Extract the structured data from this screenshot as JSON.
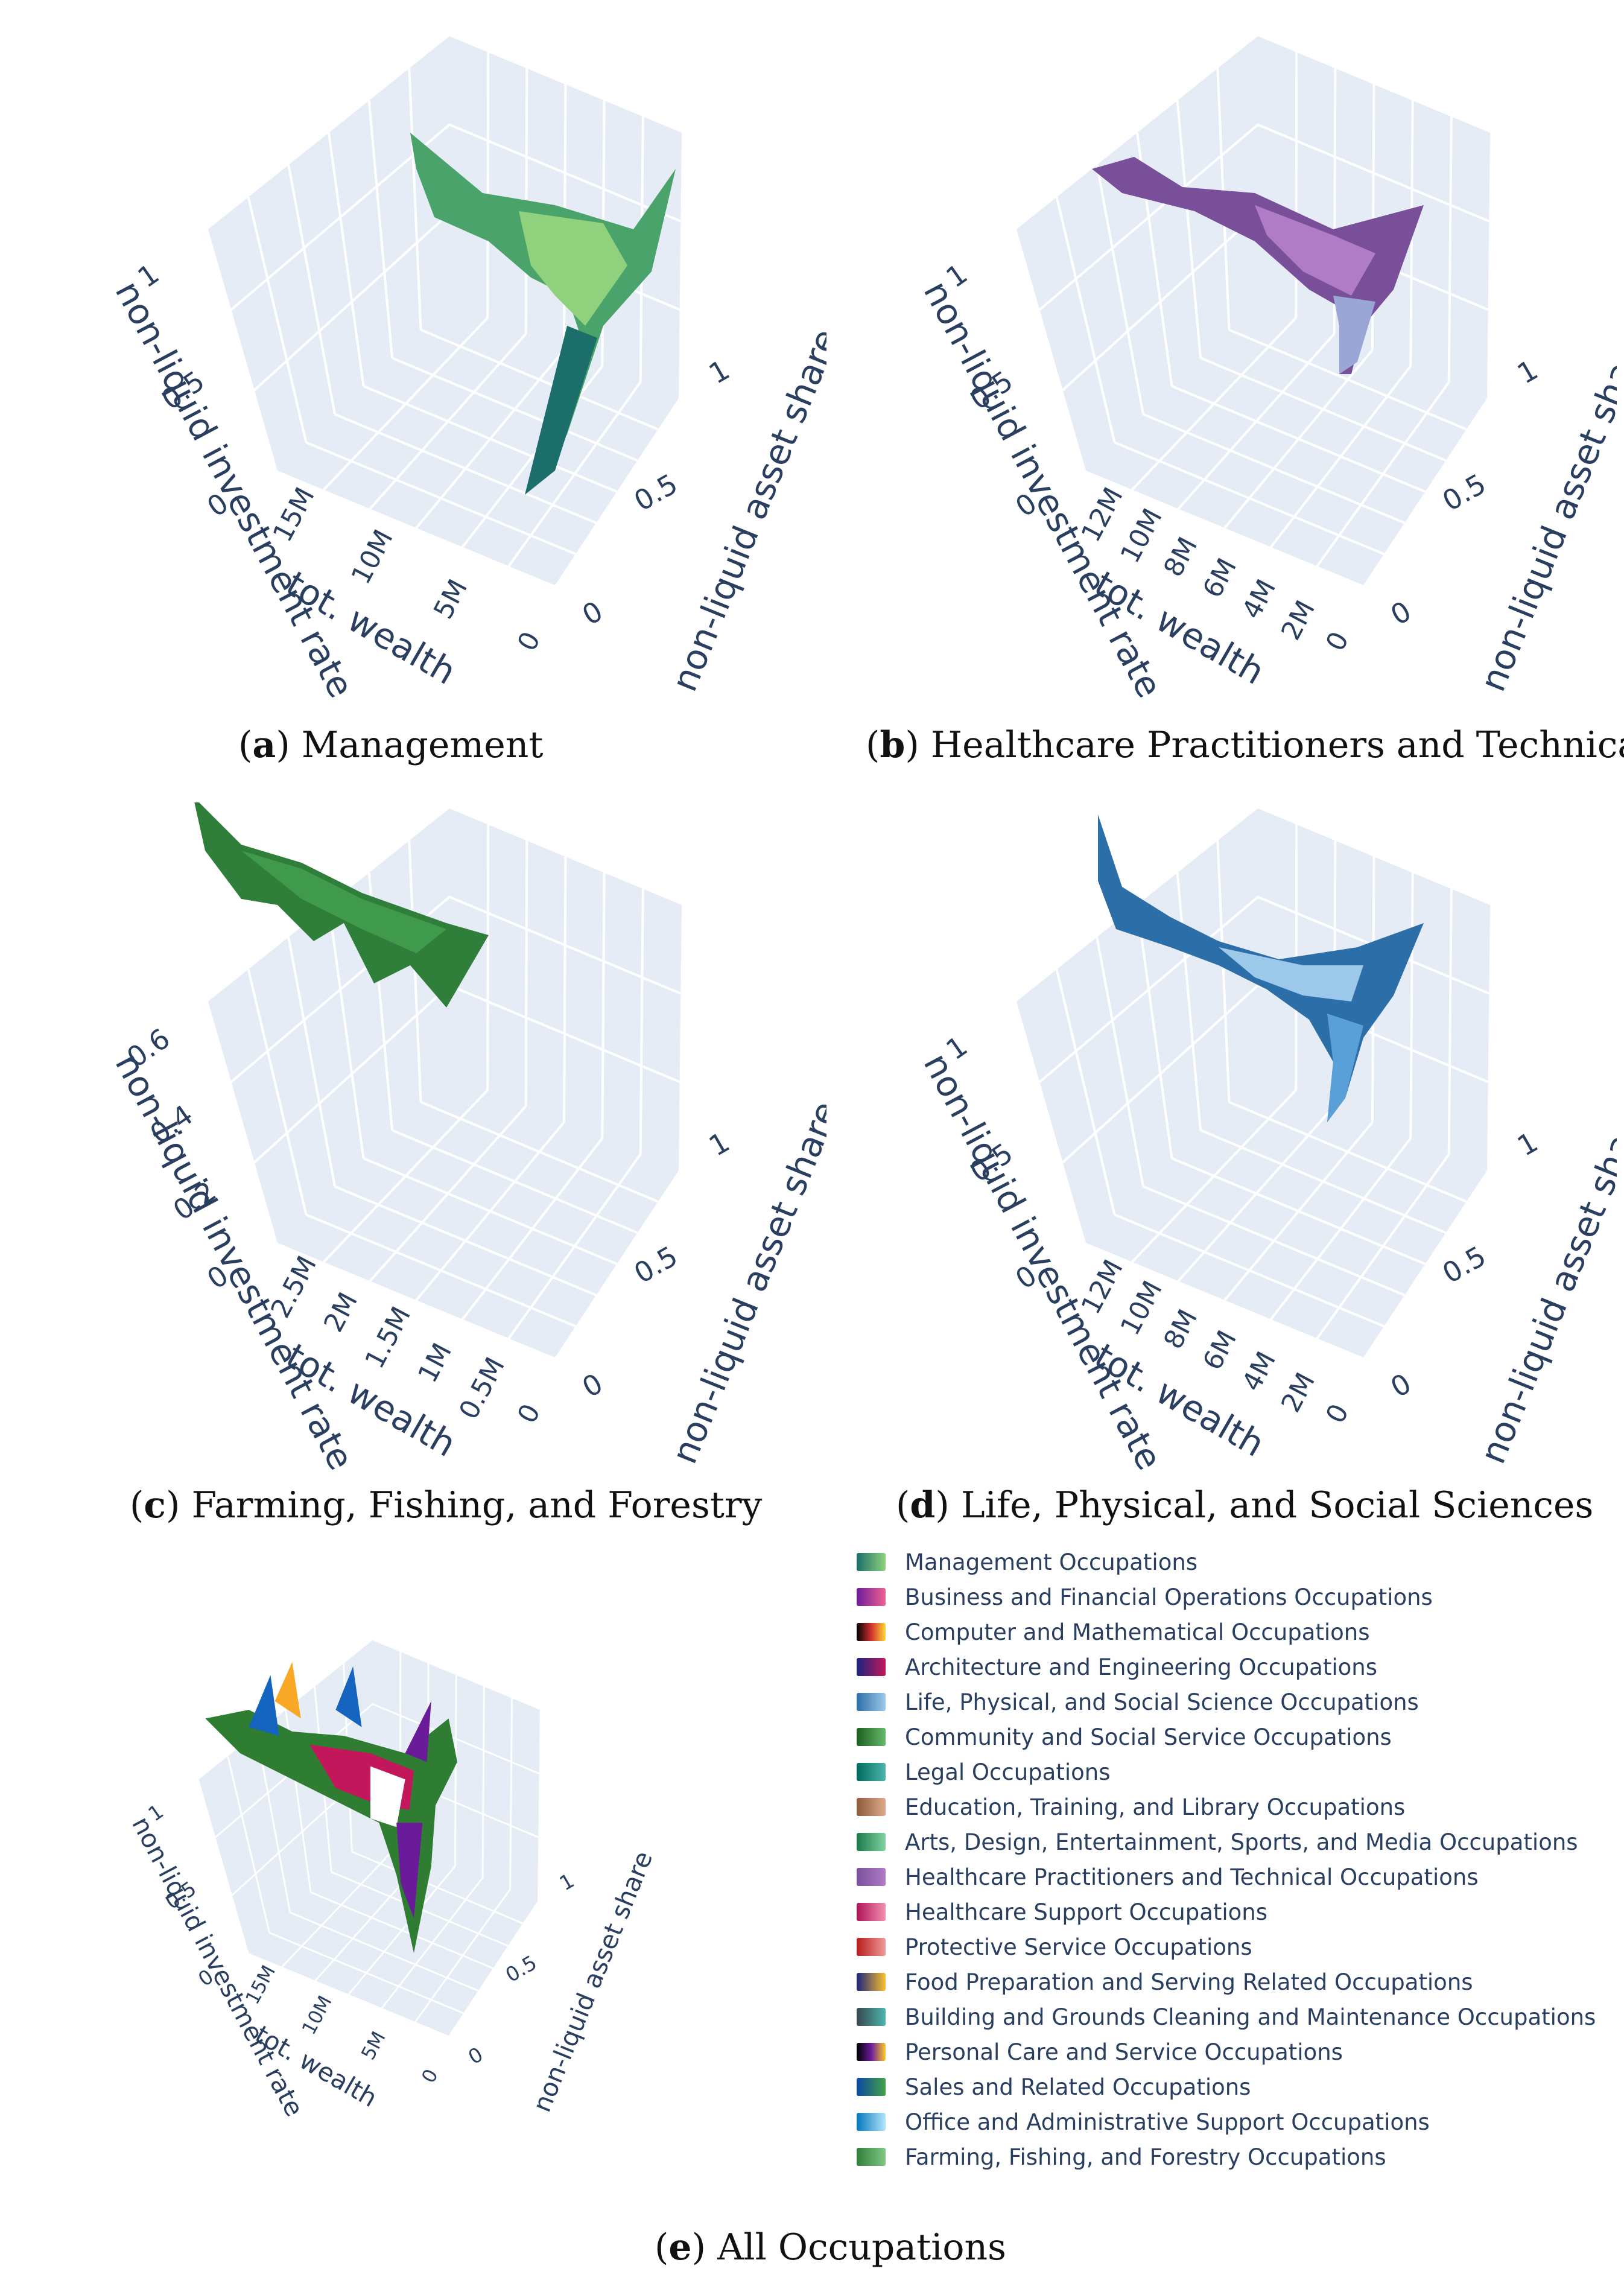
{
  "panels": [
    {
      "id": "a",
      "caption_letter": "a",
      "caption_text": "Management",
      "z_ticks": [
        "1",
        "0.5",
        "0"
      ],
      "x_ticks": [
        "15M",
        "10M",
        "5M",
        "0"
      ],
      "y_ticks": [
        "1",
        "0.5",
        "0"
      ],
      "z_label": "non-liquid investment rate",
      "x_label": "tot. wealth",
      "y_label": "non-liquid asset share",
      "colors": [
        "#8fd17c",
        "#4aa36a",
        "#1b6e6a"
      ]
    },
    {
      "id": "b",
      "caption_letter": "b",
      "caption_text": "Healthcare Practitioners and Technical",
      "z_ticks": [
        "1",
        "0.5",
        "0"
      ],
      "x_ticks": [
        "12M",
        "10M",
        "8M",
        "6M",
        "4M",
        "2M",
        "0"
      ],
      "y_ticks": [
        "1",
        "0.5",
        "0"
      ],
      "z_label": "non-liquid investment rate",
      "x_label": "tot. wealth",
      "y_label": "non-liquid asset share",
      "colors": [
        "#b07cc6",
        "#7a4f9a",
        "#9aa7d6"
      ]
    },
    {
      "id": "c",
      "caption_letter": "c",
      "caption_text": "Farming, Fishing, and Forestry",
      "z_ticks": [
        "0.6",
        "0.4",
        "0.2",
        "0"
      ],
      "x_ticks": [
        "2.5M",
        "2M",
        "1.5M",
        "1M",
        "0.5M",
        "0"
      ],
      "y_ticks": [
        "1",
        "0.5",
        "0"
      ],
      "z_label": "non-liquid investment rate",
      "x_label": "tot. wealth",
      "y_label": "non-liquid asset share",
      "colors": [
        "#3f9a4c",
        "#2f7f3a",
        "#5bb55e"
      ]
    },
    {
      "id": "d",
      "caption_letter": "d",
      "caption_text": "Life, Physical, and Social Sciences",
      "z_ticks": [
        "1",
        "0.5",
        "0"
      ],
      "x_ticks": [
        "12M",
        "10M",
        "8M",
        "6M",
        "4M",
        "2M",
        "0"
      ],
      "y_ticks": [
        "1",
        "0.5",
        "0"
      ],
      "z_label": "non-liquid investment rate",
      "x_label": "tot. wealth",
      "y_label": "non-liquid asset share",
      "colors": [
        "#5aa0d8",
        "#2c6ea8",
        "#9cc9ea"
      ]
    },
    {
      "id": "e",
      "caption_letter": "e",
      "caption_text": "All Occupations",
      "z_ticks": [
        "1",
        "0.5",
        "0"
      ],
      "x_ticks": [
        "15M",
        "10M",
        "5M",
        "0"
      ],
      "y_ticks": [
        "1",
        "0.5",
        "0"
      ],
      "z_label": "non-liquid investment rate",
      "x_label": "tot. wealth",
      "y_label": "non-liquid asset share",
      "colors": [
        "#c2185b",
        "#2e7d32",
        "#f9a825",
        "#1565c0",
        "#6a1b9a"
      ]
    }
  ],
  "legend": [
    {
      "label": "Management Occupations",
      "colors": [
        "#1b6e6a",
        "#8fd17c"
      ]
    },
    {
      "label": "Business and Financial Operations Occupations",
      "colors": [
        "#6a1b9a",
        "#f06292"
      ]
    },
    {
      "label": "Computer and Mathematical Occupations",
      "colors": [
        "#000000",
        "#d32f2f",
        "#fdd835"
      ]
    },
    {
      "label": "Architecture and Engineering Occupations",
      "colors": [
        "#1a237e",
        "#c2185b"
      ]
    },
    {
      "label": "Life, Physical, and Social Science Occupations",
      "colors": [
        "#2c6ea8",
        "#9cc9ea"
      ]
    },
    {
      "label": "Community and Social Service Occupations",
      "colors": [
        "#1b5e20",
        "#66bb6a"
      ]
    },
    {
      "label": "Legal Occupations",
      "colors": [
        "#00695c",
        "#4db6ac"
      ]
    },
    {
      "label": "Education, Training, and Library Occupations",
      "colors": [
        "#8d5a3b",
        "#e0a98c"
      ]
    },
    {
      "label": "Arts, Design, Entertainment, Sports, and Media Occupations",
      "colors": [
        "#1b7a4a",
        "#7fd3a0"
      ]
    },
    {
      "label": "Healthcare Practitioners and Technical Occupations",
      "colors": [
        "#7a4f9a",
        "#b07cc6"
      ]
    },
    {
      "label": "Healthcare Support Occupations",
      "colors": [
        "#ad1457",
        "#f48fb1"
      ]
    },
    {
      "label": "Protective Service Occupations",
      "colors": [
        "#b71c1c",
        "#ef9a9a"
      ]
    },
    {
      "label": "Food Preparation and Serving Related Occupations",
      "colors": [
        "#1a237e",
        "#fbc02d"
      ]
    },
    {
      "label": "Building and Grounds Cleaning and Maintenance Occupations",
      "colors": [
        "#37474f",
        "#4db6ac"
      ]
    },
    {
      "label": "Personal Care and Service Occupations",
      "colors": [
        "#000000",
        "#6a1b9a",
        "#ffca28"
      ]
    },
    {
      "label": "Sales and Related Occupations",
      "colors": [
        "#0d47a1",
        "#43a047"
      ]
    },
    {
      "label": "Office and Administrative Support Occupations",
      "colors": [
        "#0277bd",
        "#b3e5fc"
      ]
    },
    {
      "label": "Farming, Fishing, and Forestry Occupations",
      "colors": [
        "#2f7f3a",
        "#81c784"
      ]
    }
  ]
}
